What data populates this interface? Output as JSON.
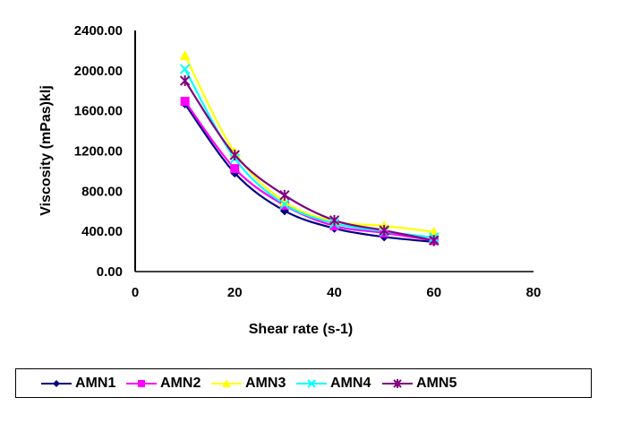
{
  "chart_data": {
    "type": "line",
    "title": "",
    "xlabel": "Shear rate (s-1)",
    "ylabel": "Viscosity (mPas)klj",
    "xlim": [
      0,
      80
    ],
    "ylim": [
      0,
      2400
    ],
    "xticks": [
      0,
      20,
      40,
      60,
      80
    ],
    "yticks": [
      0,
      400,
      800,
      1200,
      1600,
      2000,
      2400
    ],
    "xtick_labels": [
      "0",
      "20",
      "40",
      "60",
      "80"
    ],
    "ytick_labels": [
      "0.00",
      "400.00",
      "800.00",
      "1200.00",
      "1600.00",
      "2000.00",
      "2400.00"
    ],
    "grid": false,
    "smooth": true,
    "legend_position": "bottom",
    "x": [
      10,
      20,
      30,
      40,
      50,
      60
    ],
    "series": [
      {
        "name": "AMN1",
        "color": "#000080",
        "marker": "diamond",
        "values": [
          1668,
          980,
          605,
          430,
          345,
          295
        ]
      },
      {
        "name": "AMN2",
        "color": "#FF00FF",
        "marker": "square",
        "values": [
          1695,
          1025,
          660,
          455,
          385,
          310
        ]
      },
      {
        "name": "AMN3",
        "color": "#FFFF00",
        "marker": "triangle",
        "values": [
          2150,
          1185,
          695,
          500,
          455,
          395
        ]
      },
      {
        "name": "AMN4",
        "color": "#00FFFF",
        "marker": "x",
        "values": [
          2016,
          1125,
          670,
          480,
          400,
          340
        ]
      },
      {
        "name": "AMN5",
        "color": "#800080",
        "marker": "star",
        "values": [
          1900,
          1160,
          760,
          510,
          410,
          310
        ]
      }
    ]
  }
}
